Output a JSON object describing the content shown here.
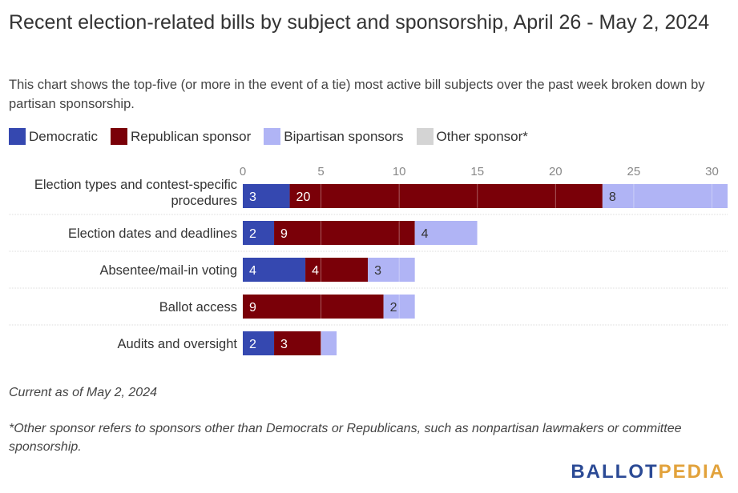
{
  "title": "Recent election-related bills by subject and sponsorship, April 26 - May 2, 2024",
  "subtitle": "This chart shows the top-five (or more in the event of a tie) most active bill subjects over the past week broken down by partisan sponsorship.",
  "legend": [
    {
      "label": "Democratic",
      "color": "#3548b0"
    },
    {
      "label": "Republican sponsor",
      "color": "#7a0008"
    },
    {
      "label": "Bipartisan sponsors",
      "color": "#b0b4f5"
    },
    {
      "label": "Other sponsor*",
      "color": "#d4d4d4"
    }
  ],
  "chart_data": {
    "type": "bar",
    "orientation": "horizontal",
    "stacked": true,
    "categories": [
      "Election types and contest-specific procedures",
      "Election dates and deadlines",
      "Absentee/mail-in voting",
      "Ballot access",
      "Audits and oversight"
    ],
    "category_lines": [
      [
        "Election types and contest-specific",
        "procedures"
      ],
      [
        "Election dates and deadlines"
      ],
      [
        "Absentee/mail-in voting"
      ],
      [
        "Ballot access"
      ],
      [
        "Audits and oversight"
      ]
    ],
    "series": [
      {
        "name": "Democratic",
        "color": "#3548b0",
        "label_color": "#ffffff",
        "values": [
          3,
          2,
          4,
          0,
          2
        ]
      },
      {
        "name": "Republican sponsor",
        "color": "#7a0008",
        "label_color": "#ffffff",
        "values": [
          20,
          9,
          4,
          9,
          3
        ]
      },
      {
        "name": "Bipartisan sponsors",
        "color": "#b0b4f5",
        "label_color": "#333333",
        "values": [
          8,
          4,
          3,
          2,
          1
        ]
      },
      {
        "name": "Other sponsor*",
        "color": "#d4d4d4",
        "label_color": "#333333",
        "values": [
          0,
          0,
          0,
          0,
          0
        ]
      }
    ],
    "value_labels_shown": [
      [
        true,
        true,
        true,
        false
      ],
      [
        true,
        true,
        true,
        false
      ],
      [
        true,
        true,
        true,
        false
      ],
      [
        false,
        true,
        true,
        false
      ],
      [
        true,
        true,
        false,
        false
      ]
    ],
    "xlim": [
      0,
      31
    ],
    "xticks": [
      0,
      5,
      10,
      15,
      20,
      25,
      30
    ],
    "grid": true,
    "legend_position": "top-left"
  },
  "notes": {
    "current_as_of": "Current as of May 2, 2024",
    "footnote": "*Other sponsor refers to sponsors other than Democrats or Republicans, such as nonpartisan lawmakers or committee sponsorship."
  },
  "logo": {
    "part1": "BALLOT",
    "part2": "PEDIA"
  }
}
